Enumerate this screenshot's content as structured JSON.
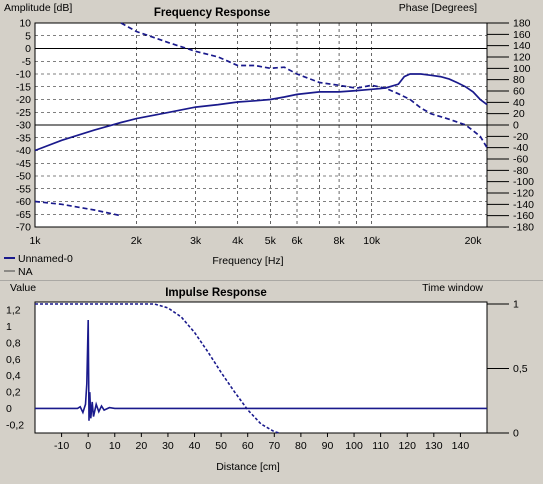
{
  "colors": {
    "background": "#d4d0c8",
    "plot_background": "#ffffff",
    "curve": "#1a1a8c",
    "grid": "#000000"
  },
  "frequency_chart": {
    "title": "Frequency Response",
    "left_axis_label": "Amplitude [dB]",
    "right_axis_label": "Phase [Degrees]",
    "x_axis_label": "Frequency [Hz]",
    "x_ticks": [
      {
        "value": 1000,
        "label": "1k"
      },
      {
        "value": 2000,
        "label": "2k"
      },
      {
        "value": 3000,
        "label": "3k"
      },
      {
        "value": 4000,
        "label": "4k"
      },
      {
        "value": 5000,
        "label": "5k"
      },
      {
        "value": 6000,
        "label": "6k"
      },
      {
        "value": 8000,
        "label": "8k"
      },
      {
        "value": 10000,
        "label": "10k"
      },
      {
        "value": 20000,
        "label": "20k"
      }
    ],
    "left_ticks": [
      "10",
      "5",
      "0",
      "-5",
      "-10",
      "-15",
      "-20",
      "-25",
      "-30",
      "-35",
      "-40",
      "-45",
      "-50",
      "-55",
      "-60",
      "-65",
      "-70"
    ],
    "right_ticks": [
      "180",
      "160",
      "140",
      "120",
      "100",
      "80",
      "60",
      "40",
      "20",
      "0",
      "-20",
      "-40",
      "-60",
      "-80",
      "-100",
      "-120",
      "-140",
      "-160",
      "-180"
    ],
    "legend": [
      {
        "label": "Unnamed-0",
        "color": "#1a1a8c"
      },
      {
        "label": "NA",
        "color": "#444444"
      }
    ]
  },
  "impulse_chart": {
    "title": "Impulse Response",
    "left_axis_label": "Value",
    "right_axis_label": "Time window",
    "x_axis_label": "Distance [cm]",
    "x_ticks": [
      "-10",
      "0",
      "10",
      "20",
      "30",
      "40",
      "50",
      "60",
      "70",
      "80",
      "90",
      "100",
      "110",
      "120",
      "130",
      "140"
    ],
    "left_ticks": [
      "1,2",
      "1",
      "0,8",
      "0,6",
      "0,4",
      "0,2",
      "0",
      "-0,2"
    ],
    "right_ticks": [
      "1",
      "0,5",
      "0"
    ]
  },
  "chart_data": [
    {
      "type": "line",
      "title": "Frequency Response",
      "xlabel": "Frequency [Hz]",
      "ylabel": "Amplitude [dB]",
      "y2label": "Phase [Degrees]",
      "x_scale": "log",
      "xlim": [
        1000,
        22000
      ],
      "ylim": [
        -70,
        10
      ],
      "y2lim": [
        -180,
        180
      ],
      "grid": true,
      "legend_position": "bottom-left",
      "series": [
        {
          "name": "Unnamed-0",
          "axis": "left",
          "style": "solid",
          "x": [
            1000,
            1200,
            1500,
            1800,
            2000,
            2500,
            3000,
            3500,
            4000,
            4500,
            5000,
            5500,
            6000,
            7000,
            8000,
            9000,
            10000,
            11000,
            12000,
            12500,
            13000,
            14000,
            15000,
            16000,
            17000,
            18000,
            19000,
            20000,
            21000,
            22000
          ],
          "y": [
            -40,
            -36,
            -32,
            -29,
            -27.5,
            -25,
            -23,
            -22,
            -21,
            -20.5,
            -20,
            -19,
            -18,
            -17,
            -17,
            -16.5,
            -16,
            -15.5,
            -14,
            -11,
            -10,
            -10,
            -10.5,
            -11,
            -12,
            -13.5,
            -15,
            -17,
            -20,
            -22
          ]
        },
        {
          "name": "Unnamed-0 (phase)",
          "axis": "right",
          "style": "dashed",
          "x": [
            1800,
            2000,
            2500,
            3000,
            3500,
            4000,
            4500,
            5000,
            5500,
            6000,
            7000,
            8000,
            9000,
            10000,
            11000,
            12000,
            13000,
            14000,
            15000,
            17000,
            19000,
            20000,
            21000,
            22000
          ],
          "y": [
            180,
            165,
            145,
            130,
            120,
            105,
            105,
            100,
            102,
            90,
            75,
            70,
            65,
            70,
            65,
            55,
            45,
            30,
            20,
            10,
            0,
            -10,
            -20,
            -40
          ]
        },
        {
          "name": "NA",
          "axis": "right",
          "style": "dashed",
          "x": [
            1000,
            1200,
            1500,
            1800
          ],
          "y": [
            -135,
            -140,
            -150,
            -160
          ]
        }
      ]
    },
    {
      "type": "line",
      "title": "Impulse Response",
      "xlabel": "Distance [cm]",
      "ylabel": "Value",
      "y2label": "Time window",
      "xlim": [
        -20,
        150
      ],
      "ylim": [
        -0.3,
        1.3
      ],
      "y2lim": [
        0,
        1
      ],
      "grid": false,
      "series": [
        {
          "name": "Impulse",
          "axis": "left",
          "style": "solid",
          "x": [
            -20,
            -4,
            -3,
            -2,
            -1,
            -0.5,
            0,
            0.3,
            0.6,
            1,
            1.5,
            2,
            3,
            4,
            5,
            6,
            8,
            10,
            12,
            150
          ],
          "y": [
            0,
            0,
            0.02,
            -0.05,
            0.05,
            0.3,
            1.08,
            -0.15,
            0.2,
            -0.12,
            0.08,
            -0.1,
            0.05,
            -0.04,
            0.03,
            -0.02,
            0.01,
            0,
            0,
            0
          ]
        },
        {
          "name": "Time window",
          "axis": "right",
          "style": "dashed",
          "x": [
            -20,
            25,
            30,
            35,
            40,
            45,
            50,
            55,
            60,
            65,
            70,
            72
          ],
          "y": [
            1,
            1,
            0.97,
            0.9,
            0.78,
            0.63,
            0.47,
            0.32,
            0.18,
            0.07,
            0.01,
            0
          ]
        }
      ]
    }
  ]
}
